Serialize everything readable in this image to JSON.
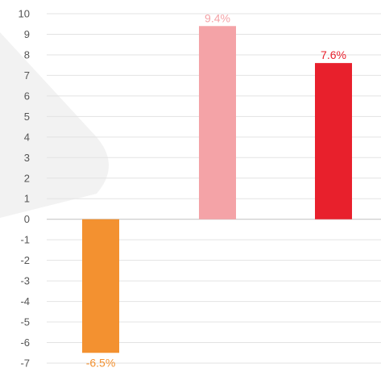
{
  "chart_data": {
    "type": "bar",
    "title": "",
    "xlabel": "",
    "ylabel": "",
    "ylim": [
      -7,
      10
    ],
    "yticks": [
      10,
      9,
      8,
      7,
      6,
      5,
      4,
      3,
      2,
      1,
      0,
      -1,
      -2,
      -3,
      -4,
      -5,
      -6,
      -7
    ],
    "grid": true,
    "legend": "none",
    "bars": [
      {
        "value": -6.5,
        "label": "-6.5%",
        "color": "#f39130",
        "label_color": "#f39130"
      },
      {
        "value": 9.4,
        "label": "9.4%",
        "color": "#f4a3a7",
        "label_color": "#f4a3a7"
      },
      {
        "value": 7.6,
        "label": "7.6%",
        "color": "#e8202c",
        "label_color": "#e8202c"
      }
    ]
  }
}
